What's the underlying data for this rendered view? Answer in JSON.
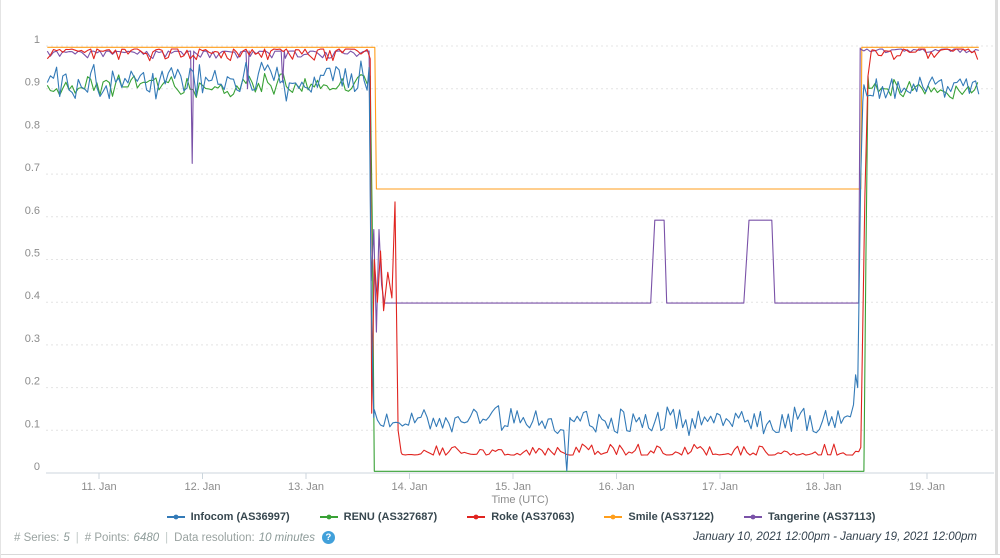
{
  "chart_data": {
    "type": "line",
    "title": "",
    "xlabel": "Time (UTC)",
    "ylabel": "",
    "ylim": [
      0,
      1
    ],
    "x_range_days": [
      10.5,
      19.5
    ],
    "x_range_label": "January 10, 2021 12:00pm - January 19, 2021 12:00pm",
    "y_tick_labels": [
      "0",
      "0.1",
      "0.2",
      "0.3",
      "0.4",
      "0.5",
      "0.6",
      "0.7",
      "0.8",
      "0.9",
      "1"
    ],
    "x_ticks": [
      {
        "day": 11,
        "label": "11. Jan"
      },
      {
        "day": 12,
        "label": "12. Jan"
      },
      {
        "day": 13,
        "label": "13. Jan"
      },
      {
        "day": 14,
        "label": "14. Jan"
      },
      {
        "day": 15,
        "label": "15. Jan"
      },
      {
        "day": 16,
        "label": "16. Jan"
      },
      {
        "day": 17,
        "label": "17. Jan"
      },
      {
        "day": 18,
        "label": "18. Jan"
      },
      {
        "day": 19,
        "label": "19. Jan"
      }
    ],
    "layout_hints": {
      "grid": "horizontal dotted",
      "legend_position": "bottom",
      "axis_color": "#ccd6dd",
      "grid_color": "#e4e4e4",
      "tick_label_color": "#8c8c8c"
    },
    "series": [
      {
        "name": "Infocom (AS36997)",
        "color": "#337ab7",
        "segments": [
          {
            "type": "noise",
            "t0": 10.5,
            "t1": 13.6,
            "base": 0.92,
            "amp": 0.055
          },
          {
            "type": "pts",
            "pts": [
              [
                13.61,
                0.95
              ],
              [
                13.63,
                0.4
              ],
              [
                13.655,
                0.13
              ]
            ]
          },
          {
            "type": "noise",
            "t0": 13.66,
            "t1": 15.47,
            "base": 0.125,
            "amp": 0.042
          },
          {
            "type": "pts",
            "pts": [
              [
                15.49,
                0.1
              ],
              [
                15.52,
                0.005
              ],
              [
                15.55,
                0.13
              ]
            ]
          },
          {
            "type": "noise",
            "t0": 15.56,
            "t1": 18.27,
            "base": 0.125,
            "amp": 0.042
          },
          {
            "type": "pts",
            "pts": [
              [
                18.29,
                0.16
              ],
              [
                18.31,
                0.23
              ],
              [
                18.33,
                0.2
              ],
              [
                18.36,
                0.7
              ],
              [
                18.38,
                0.87
              ]
            ]
          },
          {
            "type": "noise",
            "t0": 18.39,
            "t1": 19.5,
            "base": 0.905,
            "amp": 0.035
          }
        ]
      },
      {
        "name": "RENU (AS327687)",
        "color": "#38a135",
        "segments": [
          {
            "type": "noise",
            "t0": 10.5,
            "t1": 13.61,
            "base": 0.905,
            "amp": 0.033
          },
          {
            "type": "pts",
            "pts": [
              [
                13.62,
                0.93
              ],
              [
                13.64,
                0.6
              ],
              [
                13.66,
                0.004
              ]
            ]
          },
          {
            "type": "flat",
            "t0": 13.66,
            "t1": 18.39,
            "base": 0.004
          },
          {
            "type": "pts",
            "pts": [
              [
                18.41,
                0.5
              ],
              [
                18.43,
                0.93
              ]
            ]
          },
          {
            "type": "noise",
            "t0": 18.44,
            "t1": 19.5,
            "base": 0.9,
            "amp": 0.03
          }
        ]
      },
      {
        "name": "Roke (AS37063)",
        "color": "#e02420",
        "segments": [
          {
            "type": "dipnoise",
            "t0": 10.5,
            "t1": 13.61,
            "base": 0.993,
            "amp": 0.028
          },
          {
            "type": "pts",
            "pts": [
              [
                13.62,
                0.97
              ],
              [
                13.635,
                0.14
              ],
              [
                13.66,
                0.5
              ],
              [
                13.69,
                0.4
              ],
              [
                13.72,
                0.52
              ],
              [
                13.75,
                0.38
              ],
              [
                13.79,
                0.47
              ],
              [
                13.83,
                0.41
              ],
              [
                13.86,
                0.635
              ],
              [
                13.89,
                0.1
              ],
              [
                13.92,
                0.048
              ]
            ]
          },
          {
            "type": "bumpnoise",
            "t0": 13.93,
            "t1": 18.34,
            "base": 0.042,
            "amp": 0.026
          },
          {
            "type": "pts",
            "pts": [
              [
                18.36,
                0.06
              ],
              [
                18.4,
                0.65
              ],
              [
                18.43,
                0.93
              ],
              [
                18.46,
                0.985
              ]
            ]
          },
          {
            "type": "dipnoise",
            "t0": 18.47,
            "t1": 19.5,
            "base": 0.993,
            "amp": 0.028
          }
        ]
      },
      {
        "name": "Smile (AS37122)",
        "color": "#ff9e1b",
        "segments": [
          {
            "type": "flat",
            "t0": 10.5,
            "t1": 13.66,
            "base": 0.997
          },
          {
            "type": "pts",
            "pts": [
              [
                13.665,
                0.997
              ],
              [
                13.68,
                0.665
              ]
            ]
          },
          {
            "type": "flat",
            "t0": 13.68,
            "t1": 18.355,
            "base": 0.665
          },
          {
            "type": "pts",
            "pts": [
              [
                18.36,
                0.665
              ],
              [
                18.37,
                0.997
              ]
            ]
          },
          {
            "type": "flat",
            "t0": 18.37,
            "t1": 19.5,
            "base": 0.997
          }
        ]
      },
      {
        "name": "Tangerine (AS37113)",
        "color": "#7a52a8",
        "segments": [
          {
            "type": "dipnoise",
            "t0": 10.5,
            "t1": 11.87,
            "base": 0.988,
            "amp": 0.018
          },
          {
            "type": "pts",
            "pts": [
              [
                11.885,
                0.988
              ],
              [
                11.9,
                0.725
              ],
              [
                11.915,
                0.988
              ]
            ]
          },
          {
            "type": "dipnoise",
            "t0": 11.92,
            "t1": 12.41,
            "base": 0.988,
            "amp": 0.018
          },
          {
            "type": "pts",
            "pts": [
              [
                12.42,
                0.988
              ],
              [
                12.435,
                0.9
              ],
              [
                12.45,
                0.988
              ]
            ]
          },
          {
            "type": "dipnoise",
            "t0": 12.46,
            "t1": 12.75,
            "base": 0.988,
            "amp": 0.018
          },
          {
            "type": "pts",
            "pts": [
              [
                12.76,
                0.988
              ],
              [
                12.775,
                0.915
              ],
              [
                12.79,
                0.988
              ]
            ]
          },
          {
            "type": "dipnoise",
            "t0": 12.8,
            "t1": 13.6,
            "base": 0.988,
            "amp": 0.018
          },
          {
            "type": "pts",
            "pts": [
              [
                13.61,
                0.988
              ],
              [
                13.63,
                0.45
              ],
              [
                13.655,
                0.57
              ],
              [
                13.68,
                0.33
              ],
              [
                13.705,
                0.57
              ],
              [
                13.73,
                0.44
              ],
              [
                13.755,
                0.4
              ]
            ]
          },
          {
            "type": "flat",
            "t0": 13.76,
            "t1": 16.32,
            "base": 0.398
          },
          {
            "type": "pts",
            "pts": [
              [
                16.33,
                0.398
              ],
              [
                16.37,
                0.592
              ],
              [
                16.46,
                0.592
              ],
              [
                16.485,
                0.398
              ]
            ]
          },
          {
            "type": "flat",
            "t0": 16.49,
            "t1": 17.22,
            "base": 0.398
          },
          {
            "type": "pts",
            "pts": [
              [
                17.23,
                0.398
              ],
              [
                17.28,
                0.592
              ],
              [
                17.5,
                0.592
              ],
              [
                17.53,
                0.398
              ]
            ]
          },
          {
            "type": "flat",
            "t0": 17.53,
            "t1": 18.33,
            "base": 0.398
          },
          {
            "type": "pts",
            "pts": [
              [
                18.34,
                0.398
              ],
              [
                18.355,
                0.995
              ]
            ]
          },
          {
            "type": "dipnoise",
            "t0": 18.36,
            "t1": 19.5,
            "base": 0.993,
            "amp": 0.01
          }
        ]
      }
    ]
  },
  "footer": {
    "series_label": "# Series:",
    "series_value": "5",
    "points_label": "# Points:",
    "points_value": "6480",
    "resolution_label": "Data resolution:",
    "resolution_value": "10 minutes",
    "separator": "|",
    "help_icon_glyph": "?",
    "help_icon_color": "#41a0da",
    "date_range": "January 10, 2021 12:00pm - January 19, 2021 12:00pm"
  }
}
